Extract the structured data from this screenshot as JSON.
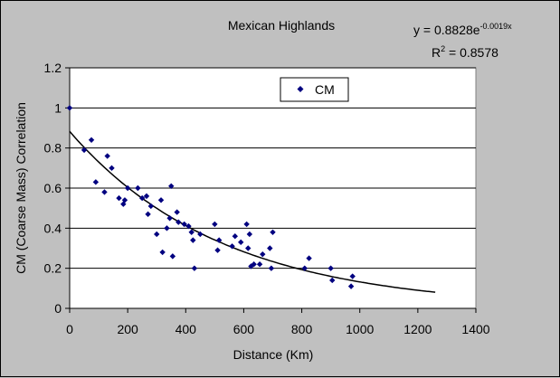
{
  "chart_data": {
    "type": "scatter",
    "title": "Mexican Highlands",
    "xlabel": "Distance (Km)",
    "ylabel": "CM (Coarse Mass) Correlation",
    "xlim": [
      0,
      1400
    ],
    "ylim": [
      0,
      1.2
    ],
    "xticks": [
      "0",
      "200",
      "400",
      "600",
      "800",
      "1000",
      "1200",
      "1400"
    ],
    "yticks": [
      "0",
      "0.2",
      "0.4",
      "0.6",
      "0.8",
      "1",
      "1.2"
    ],
    "grid": "horizontal major gridlines",
    "legend": {
      "position": "top-center",
      "entries": [
        "CM"
      ]
    },
    "colors": {
      "series": "#000080",
      "background": "#c0c0c0",
      "plot_area": "#ffffff",
      "trendline": "#000000"
    },
    "series": [
      {
        "name": "CM",
        "marker": "diamond",
        "points": [
          [
            0,
            1.0
          ],
          [
            50,
            0.79
          ],
          [
            75,
            0.84
          ],
          [
            90,
            0.63
          ],
          [
            120,
            0.58
          ],
          [
            130,
            0.76
          ],
          [
            145,
            0.7
          ],
          [
            170,
            0.55
          ],
          [
            185,
            0.52
          ],
          [
            190,
            0.54
          ],
          [
            200,
            0.6
          ],
          [
            235,
            0.6
          ],
          [
            250,
            0.55
          ],
          [
            265,
            0.56
          ],
          [
            270,
            0.47
          ],
          [
            280,
            0.51
          ],
          [
            300,
            0.37
          ],
          [
            315,
            0.54
          ],
          [
            320,
            0.28
          ],
          [
            335,
            0.4
          ],
          [
            345,
            0.45
          ],
          [
            350,
            0.61
          ],
          [
            355,
            0.26
          ],
          [
            370,
            0.48
          ],
          [
            375,
            0.43
          ],
          [
            395,
            0.42
          ],
          [
            410,
            0.41
          ],
          [
            420,
            0.38
          ],
          [
            425,
            0.34
          ],
          [
            430,
            0.2
          ],
          [
            450,
            0.37
          ],
          [
            500,
            0.42
          ],
          [
            510,
            0.29
          ],
          [
            515,
            0.34
          ],
          [
            560,
            0.31
          ],
          [
            570,
            0.36
          ],
          [
            590,
            0.33
          ],
          [
            610,
            0.42
          ],
          [
            615,
            0.3
          ],
          [
            620,
            0.37
          ],
          [
            625,
            0.21
          ],
          [
            635,
            0.22
          ],
          [
            655,
            0.22
          ],
          [
            665,
            0.27
          ],
          [
            690,
            0.3
          ],
          [
            695,
            0.2
          ],
          [
            700,
            0.38
          ],
          [
            810,
            0.2
          ],
          [
            825,
            0.25
          ],
          [
            900,
            0.2
          ],
          [
            905,
            0.14
          ],
          [
            970,
            0.11
          ],
          [
            975,
            0.16
          ]
        ]
      }
    ],
    "trendline": {
      "type": "exponential",
      "a": 0.8828,
      "b": -0.0019,
      "x_range": [
        0,
        1260
      ],
      "equation_prefix": "y = 0.8828e",
      "equation_exponent": "-0.0019x",
      "r2_prefix": "R",
      "r2_sup": "2",
      "r2_suffix": " = 0.8578"
    }
  }
}
